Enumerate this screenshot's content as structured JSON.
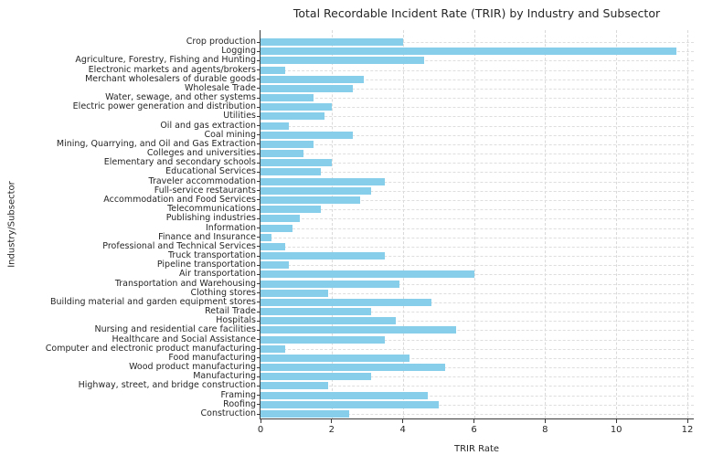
{
  "chart_data": {
    "type": "bar",
    "orientation": "horizontal",
    "title": "Total Recordable Incident Rate (TRIR) by Industry and Subsector",
    "xlabel": "TRIR Rate",
    "ylabel": "Industry/Subsector",
    "bar_color": "#87CEEB",
    "grid": true,
    "legend": "none",
    "xlim": [
      0,
      12.2
    ],
    "xticks": [
      0,
      2,
      4,
      6,
      8,
      10,
      12
    ],
    "categories": [
      "Crop production",
      "Logging",
      "Agriculture, Forestry, Fishing and Hunting",
      "Electronic markets and agents/brokers",
      "Merchant wholesalers of durable goods",
      "Wholesale Trade",
      "Water, sewage, and other systems",
      "Electric power generation and distribution",
      "Utilities",
      "Oil and gas extraction",
      "Coal mining",
      "Mining, Quarrying, and Oil and Gas Extraction",
      "Colleges and universities",
      "Elementary and secondary schools",
      "Educational Services",
      "Traveler accommodation",
      "Full-service restaurants",
      "Accommodation and Food Services",
      "Telecommunications",
      "Publishing industries",
      "Information",
      "Finance and Insurance",
      "Professional and Technical Services",
      "Truck transportation",
      "Pipeline transportation",
      "Air transportation",
      "Transportation and Warehousing",
      "Clothing stores",
      "Building material and garden equipment stores",
      "Retail Trade",
      "Hospitals",
      "Nursing and residential care facilities",
      "Healthcare and Social Assistance",
      "Computer and electronic product manufacturing",
      "Food manufacturing",
      "Wood product manufacturing",
      "Manufacturing",
      "Highway, street, and bridge construction",
      "Framing",
      "Roofing",
      "Construction"
    ],
    "values": [
      4.0,
      11.7,
      4.6,
      0.7,
      2.9,
      2.6,
      1.5,
      2.0,
      1.8,
      0.8,
      2.6,
      1.5,
      1.2,
      2.0,
      1.7,
      3.5,
      3.1,
      2.8,
      1.7,
      1.1,
      0.9,
      0.3,
      0.7,
      3.5,
      0.8,
      6.0,
      3.9,
      1.9,
      4.8,
      3.1,
      3.8,
      5.5,
      3.5,
      0.7,
      4.2,
      5.2,
      3.1,
      1.9,
      4.7,
      5.0,
      2.5
    ]
  }
}
